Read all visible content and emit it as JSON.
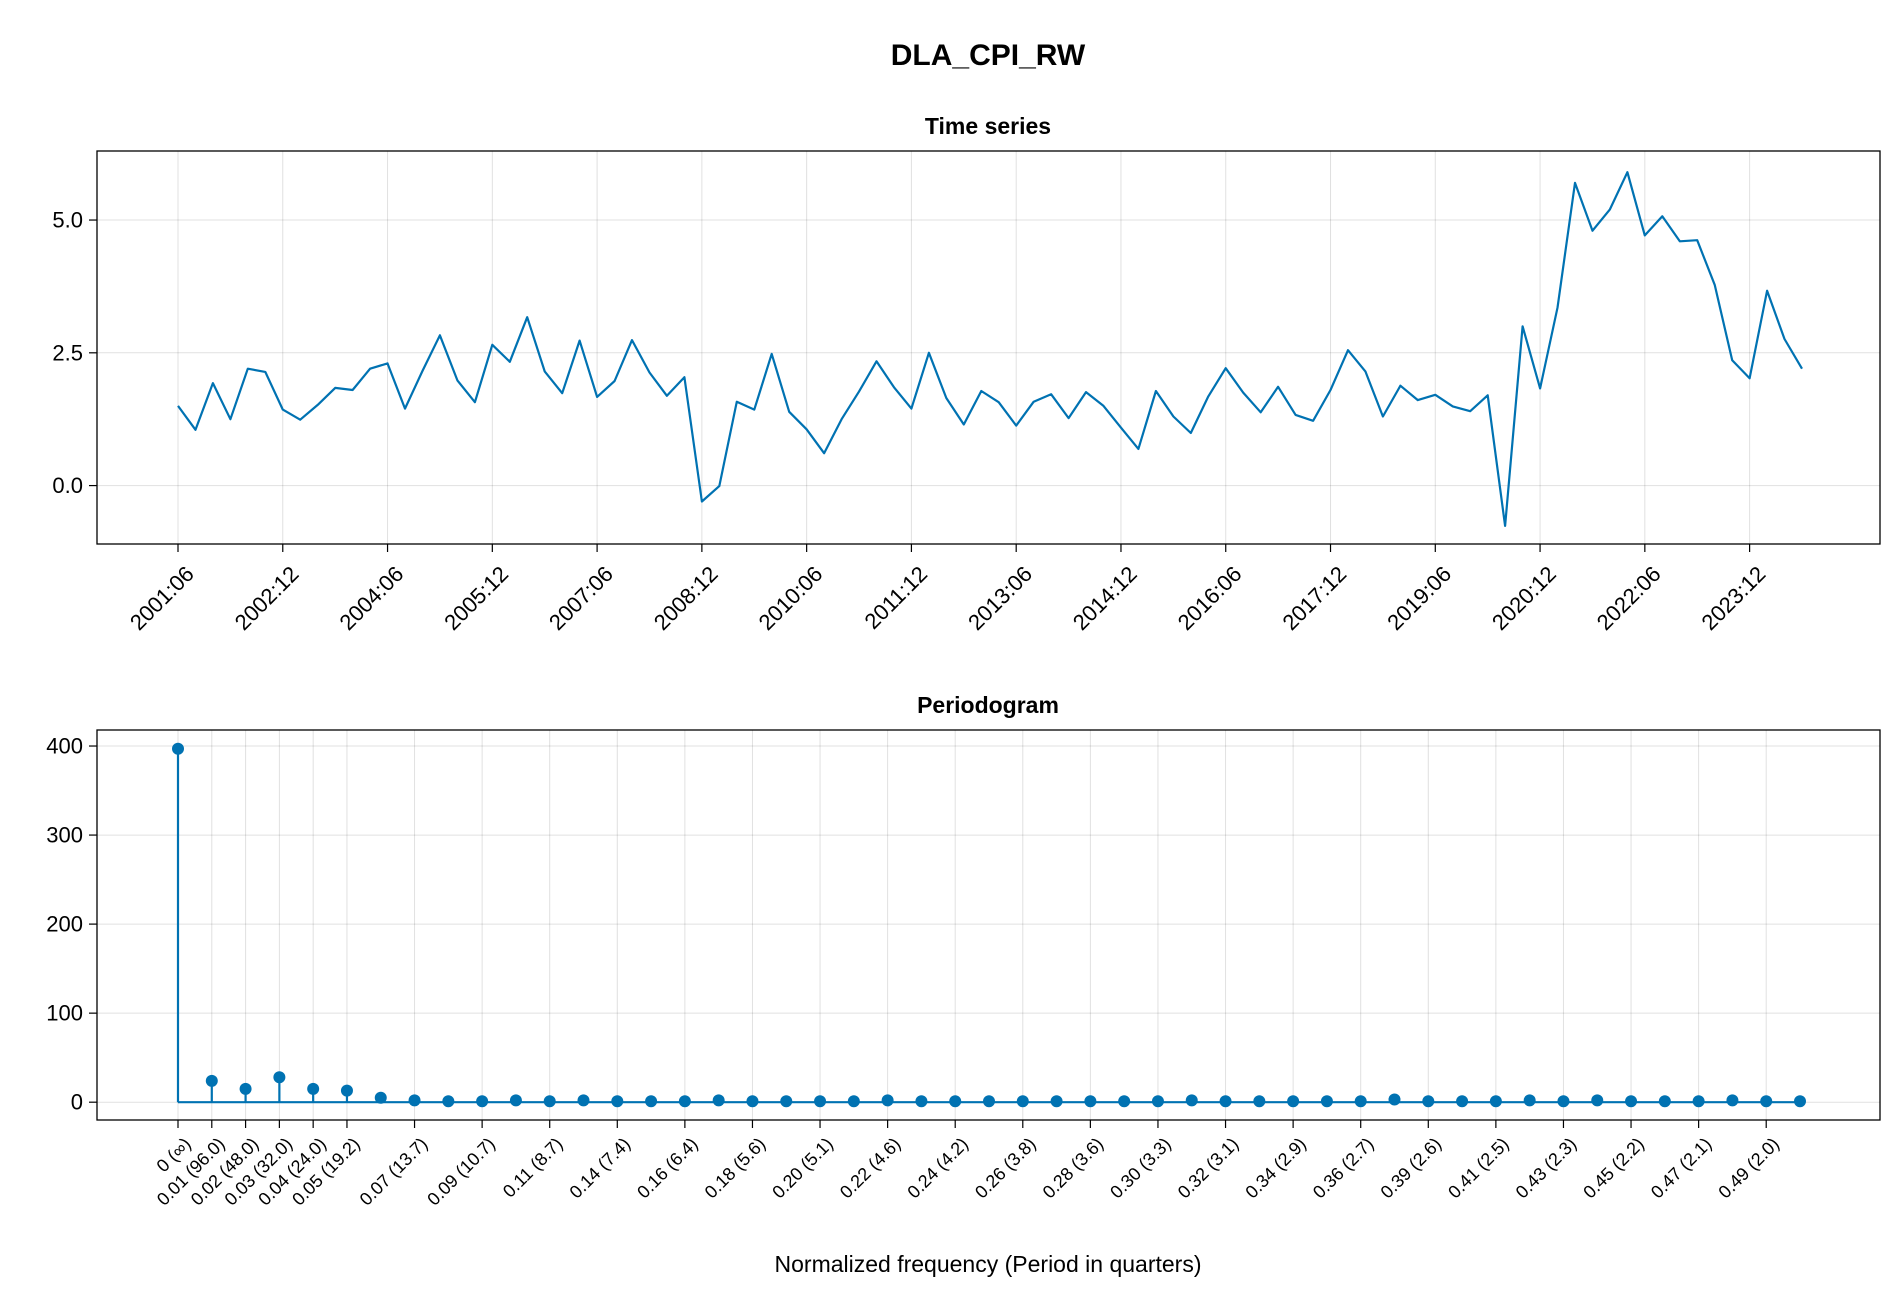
{
  "title": "DLA_CPI_RW",
  "colors": {
    "series": "#0072b2",
    "grid": "#e5e5e5",
    "axis": "#000000"
  },
  "chart_data": [
    {
      "type": "line",
      "title": "Time series",
      "xlabel": "",
      "ylabel": "",
      "x_tick_labels": [
        "2001:06",
        "2002:12",
        "2004:06",
        "2005:12",
        "2007:06",
        "2008:12",
        "2010:06",
        "2011:12",
        "2013:06",
        "2014:12",
        "2016:06",
        "2017:12",
        "2019:06",
        "2020:12",
        "2022:06",
        "2023:12"
      ],
      "y_ticks": [
        0.0,
        2.5,
        5.0
      ],
      "y_tick_labels": [
        "0.0",
        "2.5",
        "5.0"
      ],
      "ylim": [
        -1.1,
        6.3
      ],
      "grid": true,
      "series": [
        {
          "values": [
            1.5,
            1.05,
            1.93,
            1.25,
            2.2,
            2.14,
            1.43,
            1.24,
            1.52,
            1.84,
            1.8,
            2.2,
            2.3,
            1.45,
            2.16,
            2.83,
            1.98,
            1.57,
            2.65,
            2.33,
            3.17,
            2.15,
            1.74,
            2.73,
            1.67,
            1.97,
            2.74,
            2.13,
            1.69,
            2.04,
            -0.3,
            -0.01,
            1.58,
            1.43,
            2.48,
            1.39,
            1.06,
            0.61,
            1.25,
            1.77,
            2.34,
            1.85,
            1.45,
            2.5,
            1.65,
            1.15,
            1.78,
            1.57,
            1.13,
            1.58,
            1.72,
            1.27,
            1.76,
            1.5,
            1.09,
            0.69,
            1.78,
            1.3,
            0.99,
            1.68,
            2.21,
            1.75,
            1.38,
            1.86,
            1.33,
            1.22,
            1.8,
            2.55,
            2.15,
            1.3,
            1.88,
            1.61,
            1.71,
            1.49,
            1.4,
            1.7,
            -0.76,
            3.0,
            1.83,
            3.35,
            5.7,
            4.8,
            5.2,
            5.9,
            4.71,
            5.07,
            4.6,
            4.62,
            3.78,
            2.36,
            2.02,
            3.67,
            2.76,
            2.2
          ]
        }
      ]
    },
    {
      "type": "stem",
      "title": "Periodogram",
      "xlabel": "Normalized frequency (Period in quarters)",
      "ylabel": "",
      "x_tick_labels": [
        "0 (∞)",
        "0.01 (96.0)",
        "0.02 (48.0)",
        "0.03 (32.0)",
        "0.04 (24.0)",
        "0.05 (19.2)",
        "0.07 (13.7)",
        "0.09 (10.7)",
        "0.11 (8.7)",
        "0.14 (7.4)",
        "0.16 (6.4)",
        "0.18 (5.6)",
        "0.20 (5.1)",
        "0.22 (4.6)",
        "0.24 (4.2)",
        "0.26 (3.8)",
        "0.28 (3.6)",
        "0.30 (3.3)",
        "0.32 (3.1)",
        "0.34 (2.9)",
        "0.36 (2.7)",
        "0.39 (2.6)",
        "0.41 (2.5)",
        "0.43 (2.3)",
        "0.45 (2.2)",
        "0.47 (2.1)",
        "0.49 (2.0)"
      ],
      "y_ticks": [
        0,
        100,
        200,
        300,
        400
      ],
      "y_tick_labels": [
        "0",
        "100",
        "200",
        "300",
        "400"
      ],
      "ylim": [
        -20,
        418
      ],
      "grid": true,
      "series": [
        {
          "values": [
            397,
            24,
            15,
            28,
            15,
            13,
            5,
            2,
            1,
            1,
            2,
            1,
            2,
            1,
            1,
            1,
            2,
            1,
            1,
            1,
            1,
            2,
            1,
            1,
            1,
            1,
            1,
            1,
            1,
            1,
            2,
            1,
            1,
            1,
            1,
            1,
            3,
            1,
            1,
            1,
            2,
            1,
            2,
            1,
            1,
            1,
            2,
            1,
            1
          ]
        }
      ]
    }
  ]
}
